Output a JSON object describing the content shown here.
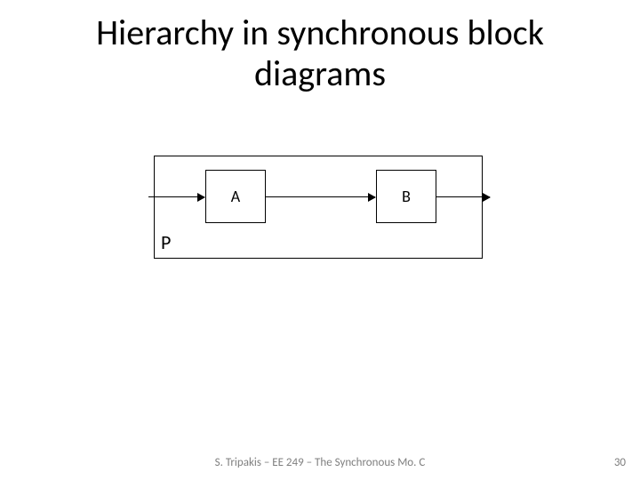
{
  "title_line1": "Hierarchy in synchronous block",
  "title_line2": "diagrams",
  "diagram": {
    "outer_label": "P",
    "block_a": "A",
    "block_b": "B",
    "outer_border_color": "#000000",
    "block_border_color": "#000000",
    "arrow_color": "#000000",
    "background": "#ffffff",
    "block_fontsize": 18,
    "p_fontsize": 22
  },
  "footer": "S. Tripakis – EE 249 – The Synchronous Mo. C",
  "page_number": "30",
  "colors": {
    "text": "#000000",
    "footer_text": "#7f7f7f",
    "background": "#ffffff"
  },
  "typography": {
    "title_fontsize": 40,
    "footer_fontsize": 13,
    "font_family": "Calibri"
  }
}
